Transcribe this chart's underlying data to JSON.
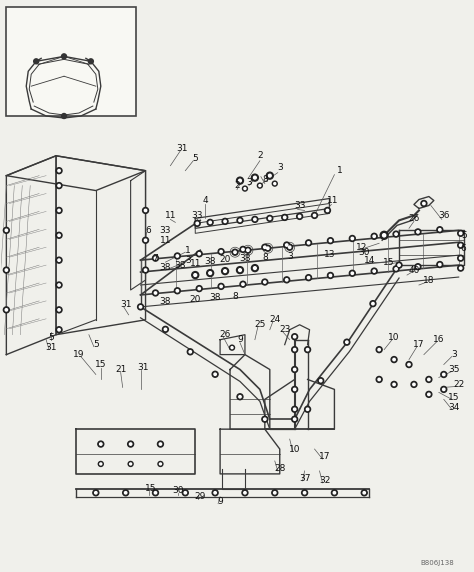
{
  "bg_color": "#f0f0eb",
  "line_color": "#3a3a3a",
  "text_color": "#111111",
  "watermark": "B806J138",
  "figsize": [
    4.74,
    5.72
  ],
  "dpi": 100
}
